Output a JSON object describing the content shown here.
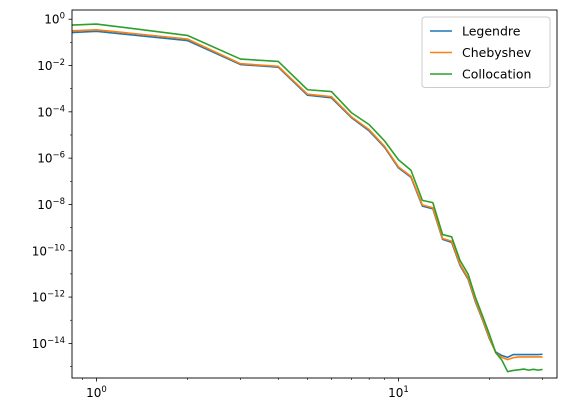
{
  "chart_data": {
    "type": "line",
    "title": "",
    "xlabel": "",
    "ylabel": "",
    "xscale": "log",
    "yscale": "log",
    "xlim": [
      0.83,
      33.5
    ],
    "ylim": [
      3.2e-16,
      2.5
    ],
    "grid": false,
    "legend_position": "top-right",
    "x_ticks": [
      {
        "value": 1,
        "base": "10",
        "exp": "0"
      },
      {
        "value": 10,
        "base": "10",
        "exp": "1"
      }
    ],
    "y_ticks": [
      {
        "value": 1,
        "base": "10",
        "exp": "0"
      },
      {
        "value": 0.01,
        "base": "10",
        "exp": "−2"
      },
      {
        "value": 0.0001,
        "base": "10",
        "exp": "−4"
      },
      {
        "value": 1e-06,
        "base": "10",
        "exp": "−6"
      },
      {
        "value": 1e-08,
        "base": "10",
        "exp": "−8"
      },
      {
        "value": 1e-10,
        "base": "10",
        "exp": "−10"
      },
      {
        "value": 1e-12,
        "base": "10",
        "exp": "−12"
      },
      {
        "value": 1e-14,
        "base": "10",
        "exp": "−14"
      }
    ],
    "series": [
      {
        "name": "Legendre",
        "color": "#1f77b4",
        "points": [
          [
            0.8,
            0.26
          ],
          [
            1,
            0.3
          ],
          [
            2,
            0.12
          ],
          [
            3,
            0.011
          ],
          [
            4,
            0.0085
          ],
          [
            5,
            0.00052
          ],
          [
            6,
            0.0004
          ],
          [
            7,
            5.5e-05
          ],
          [
            8,
            1.5e-05
          ],
          [
            9,
            2.9e-06
          ],
          [
            10,
            3.8e-07
          ],
          [
            11,
            1.5e-07
          ],
          [
            12,
            8.5e-09
          ],
          [
            13,
            6.5e-09
          ],
          [
            14,
            3.1e-10
          ],
          [
            15,
            2.3e-10
          ],
          [
            16,
            2.3e-11
          ],
          [
            17,
            6e-12
          ],
          [
            18,
            6e-13
          ],
          [
            19,
            1e-13
          ],
          [
            20,
            1.6e-14
          ],
          [
            21,
            4.2e-15
          ],
          [
            22,
            3e-15
          ],
          [
            23,
            2.5e-15
          ],
          [
            24,
            3.3e-15
          ],
          [
            25,
            3.3e-15
          ],
          [
            26,
            3.3e-15
          ],
          [
            27,
            3.3e-15
          ],
          [
            28,
            3.3e-15
          ],
          [
            29,
            3.3e-15
          ],
          [
            30,
            3.4e-15
          ]
        ]
      },
      {
        "name": "Chebyshev",
        "color": "#ff7f0e",
        "points": [
          [
            0.8,
            0.31
          ],
          [
            1,
            0.35
          ],
          [
            2,
            0.14
          ],
          [
            3,
            0.012
          ],
          [
            4,
            0.0092
          ],
          [
            5,
            0.00058
          ],
          [
            6,
            0.00045
          ],
          [
            7,
            6e-05
          ],
          [
            8,
            1.7e-05
          ],
          [
            9,
            3.2e-06
          ],
          [
            10,
            4.2e-07
          ],
          [
            11,
            1.65e-07
          ],
          [
            12,
            9.5e-09
          ],
          [
            13,
            7.2e-09
          ],
          [
            14,
            3.4e-10
          ],
          [
            15,
            2.6e-10
          ],
          [
            16,
            2.6e-11
          ],
          [
            17,
            6.8e-12
          ],
          [
            18,
            6.8e-13
          ],
          [
            19,
            1.1e-13
          ],
          [
            20,
            1.8e-14
          ],
          [
            21,
            3.9e-15
          ],
          [
            22,
            2.5e-15
          ],
          [
            23,
            2e-15
          ],
          [
            24,
            2.4e-15
          ],
          [
            25,
            2.6e-15
          ],
          [
            26,
            2.6e-15
          ],
          [
            27,
            2.6e-15
          ],
          [
            28,
            2.6e-15
          ],
          [
            29,
            2.6e-15
          ],
          [
            30,
            2.6e-15
          ]
        ]
      },
      {
        "name": "Collocation",
        "color": "#2ca02c",
        "points": [
          [
            0.8,
            0.55
          ],
          [
            1,
            0.62
          ],
          [
            2,
            0.2
          ],
          [
            3,
            0.019
          ],
          [
            4,
            0.015
          ],
          [
            5,
            0.0009
          ],
          [
            6,
            0.00075
          ],
          [
            7,
            9e-05
          ],
          [
            8,
            2.8e-05
          ],
          [
            9,
            5.5e-06
          ],
          [
            10,
            8.5e-07
          ],
          [
            11,
            3e-07
          ],
          [
            12,
            1.5e-08
          ],
          [
            13,
            1.2e-08
          ],
          [
            14,
            5e-10
          ],
          [
            15,
            4e-10
          ],
          [
            16,
            3.8e-11
          ],
          [
            17,
            1e-11
          ],
          [
            18,
            9.5e-13
          ],
          [
            19,
            1.5e-13
          ],
          [
            20,
            2.5e-14
          ],
          [
            21,
            4e-15
          ],
          [
            22,
            1.9e-15
          ],
          [
            23,
            6e-16
          ],
          [
            24,
            6.8e-16
          ],
          [
            25,
            7.2e-16
          ],
          [
            26,
            7.8e-16
          ],
          [
            27,
            7e-16
          ],
          [
            28,
            7.6e-16
          ],
          [
            29,
            7e-16
          ],
          [
            30,
            7.5e-16
          ]
        ]
      }
    ]
  }
}
